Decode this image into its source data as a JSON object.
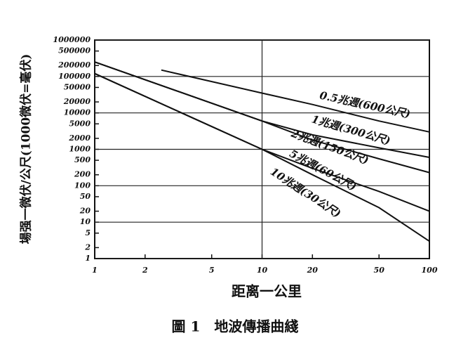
{
  "chart_data": {
    "type": "line",
    "log_x": true,
    "log_y": true,
    "grid": true,
    "xlabel": "距离一公里",
    "ylabel": "場强一微伏/公尺(1000微伏=毫伏)",
    "caption": "圖 1　地波傳播曲綫",
    "xlim": [
      1,
      100
    ],
    "xticks": [
      1,
      2,
      5,
      10,
      20,
      50,
      100
    ],
    "ylim": [
      1,
      1000000
    ],
    "yticks": [
      1,
      2,
      5,
      10,
      20,
      50,
      100,
      200,
      500,
      1000,
      2000,
      5000,
      10000,
      20000,
      50000,
      100000,
      200000,
      500000,
      1000000
    ],
    "series": [
      {
        "name": "0.5兆週(600公尺)",
        "color": "#111111",
        "x": [
          2.5,
          10,
          20,
          50,
          100
        ],
        "values": [
          150000,
          35000,
          17000,
          6000,
          3000
        ]
      },
      {
        "name": "1兆週(300公尺)",
        "color": "#111111",
        "x": [
          1,
          10,
          20,
          50,
          100
        ],
        "values": [
          250000,
          6000,
          2500,
          1100,
          600
        ]
      },
      {
        "name": "2兆週(150公尺)",
        "color": "#111111",
        "x": [
          1,
          10,
          20,
          50,
          100
        ],
        "values": [
          250000,
          6000,
          1800,
          550,
          230
        ]
      },
      {
        "name": "5兆週(60公尺)",
        "color": "#111111",
        "x": [
          1,
          10,
          20,
          50,
          100
        ],
        "values": [
          120000,
          1000,
          300,
          70,
          20
        ]
      },
      {
        "name": "10兆週(30公尺)",
        "color": "#111111",
        "x": [
          1,
          10,
          20,
          50,
          100
        ],
        "values": [
          120000,
          1000,
          200,
          25,
          3
        ]
      }
    ]
  }
}
